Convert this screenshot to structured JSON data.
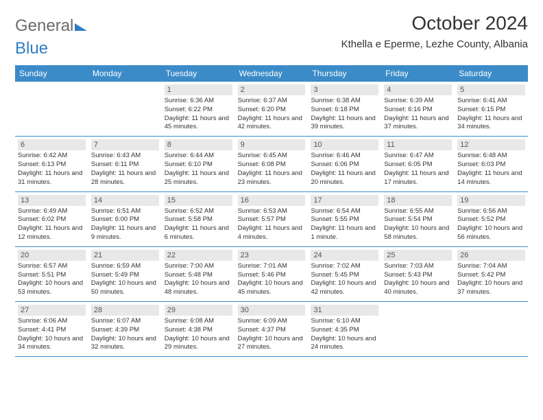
{
  "logo": {
    "text1": "General",
    "text2": "Blue"
  },
  "title": "October 2024",
  "location": "Kthella e Eperme, Lezhe County, Albania",
  "colors": {
    "header_bg": "#3b8bc8",
    "header_text": "#ffffff",
    "daynum_bg": "#e8e8e8",
    "text": "#333333",
    "logo_gray": "#6b6b6b",
    "logo_blue": "#2f7ec2",
    "row_border": "#3b8bc8"
  },
  "typography": {
    "title_fontsize": 28,
    "location_fontsize": 15,
    "dow_fontsize": 12,
    "daynum_fontsize": 11,
    "body_fontsize": 9.5
  },
  "days_of_week": [
    "Sunday",
    "Monday",
    "Tuesday",
    "Wednesday",
    "Thursday",
    "Friday",
    "Saturday"
  ],
  "weeks": [
    [
      null,
      null,
      {
        "n": "1",
        "sr": "6:36 AM",
        "ss": "6:22 PM",
        "dl": "11 hours and 45 minutes."
      },
      {
        "n": "2",
        "sr": "6:37 AM",
        "ss": "6:20 PM",
        "dl": "11 hours and 42 minutes."
      },
      {
        "n": "3",
        "sr": "6:38 AM",
        "ss": "6:18 PM",
        "dl": "11 hours and 39 minutes."
      },
      {
        "n": "4",
        "sr": "6:39 AM",
        "ss": "6:16 PM",
        "dl": "11 hours and 37 minutes."
      },
      {
        "n": "5",
        "sr": "6:41 AM",
        "ss": "6:15 PM",
        "dl": "11 hours and 34 minutes."
      }
    ],
    [
      {
        "n": "6",
        "sr": "6:42 AM",
        "ss": "6:13 PM",
        "dl": "11 hours and 31 minutes."
      },
      {
        "n": "7",
        "sr": "6:43 AM",
        "ss": "6:11 PM",
        "dl": "11 hours and 28 minutes."
      },
      {
        "n": "8",
        "sr": "6:44 AM",
        "ss": "6:10 PM",
        "dl": "11 hours and 25 minutes."
      },
      {
        "n": "9",
        "sr": "6:45 AM",
        "ss": "6:08 PM",
        "dl": "11 hours and 23 minutes."
      },
      {
        "n": "10",
        "sr": "6:46 AM",
        "ss": "6:06 PM",
        "dl": "11 hours and 20 minutes."
      },
      {
        "n": "11",
        "sr": "6:47 AM",
        "ss": "6:05 PM",
        "dl": "11 hours and 17 minutes."
      },
      {
        "n": "12",
        "sr": "6:48 AM",
        "ss": "6:03 PM",
        "dl": "11 hours and 14 minutes."
      }
    ],
    [
      {
        "n": "13",
        "sr": "6:49 AM",
        "ss": "6:02 PM",
        "dl": "11 hours and 12 minutes."
      },
      {
        "n": "14",
        "sr": "6:51 AM",
        "ss": "6:00 PM",
        "dl": "11 hours and 9 minutes."
      },
      {
        "n": "15",
        "sr": "6:52 AM",
        "ss": "5:58 PM",
        "dl": "11 hours and 6 minutes."
      },
      {
        "n": "16",
        "sr": "6:53 AM",
        "ss": "5:57 PM",
        "dl": "11 hours and 4 minutes."
      },
      {
        "n": "17",
        "sr": "6:54 AM",
        "ss": "5:55 PM",
        "dl": "11 hours and 1 minute."
      },
      {
        "n": "18",
        "sr": "6:55 AM",
        "ss": "5:54 PM",
        "dl": "10 hours and 58 minutes."
      },
      {
        "n": "19",
        "sr": "6:56 AM",
        "ss": "5:52 PM",
        "dl": "10 hours and 56 minutes."
      }
    ],
    [
      {
        "n": "20",
        "sr": "6:57 AM",
        "ss": "5:51 PM",
        "dl": "10 hours and 53 minutes."
      },
      {
        "n": "21",
        "sr": "6:59 AM",
        "ss": "5:49 PM",
        "dl": "10 hours and 50 minutes."
      },
      {
        "n": "22",
        "sr": "7:00 AM",
        "ss": "5:48 PM",
        "dl": "10 hours and 48 minutes."
      },
      {
        "n": "23",
        "sr": "7:01 AM",
        "ss": "5:46 PM",
        "dl": "10 hours and 45 minutes."
      },
      {
        "n": "24",
        "sr": "7:02 AM",
        "ss": "5:45 PM",
        "dl": "10 hours and 42 minutes."
      },
      {
        "n": "25",
        "sr": "7:03 AM",
        "ss": "5:43 PM",
        "dl": "10 hours and 40 minutes."
      },
      {
        "n": "26",
        "sr": "7:04 AM",
        "ss": "5:42 PM",
        "dl": "10 hours and 37 minutes."
      }
    ],
    [
      {
        "n": "27",
        "sr": "6:06 AM",
        "ss": "4:41 PM",
        "dl": "10 hours and 34 minutes."
      },
      {
        "n": "28",
        "sr": "6:07 AM",
        "ss": "4:39 PM",
        "dl": "10 hours and 32 minutes."
      },
      {
        "n": "29",
        "sr": "6:08 AM",
        "ss": "4:38 PM",
        "dl": "10 hours and 29 minutes."
      },
      {
        "n": "30",
        "sr": "6:09 AM",
        "ss": "4:37 PM",
        "dl": "10 hours and 27 minutes."
      },
      {
        "n": "31",
        "sr": "6:10 AM",
        "ss": "4:35 PM",
        "dl": "10 hours and 24 minutes."
      },
      null,
      null
    ]
  ],
  "labels": {
    "sunrise": "Sunrise:",
    "sunset": "Sunset:",
    "daylight": "Daylight:"
  }
}
